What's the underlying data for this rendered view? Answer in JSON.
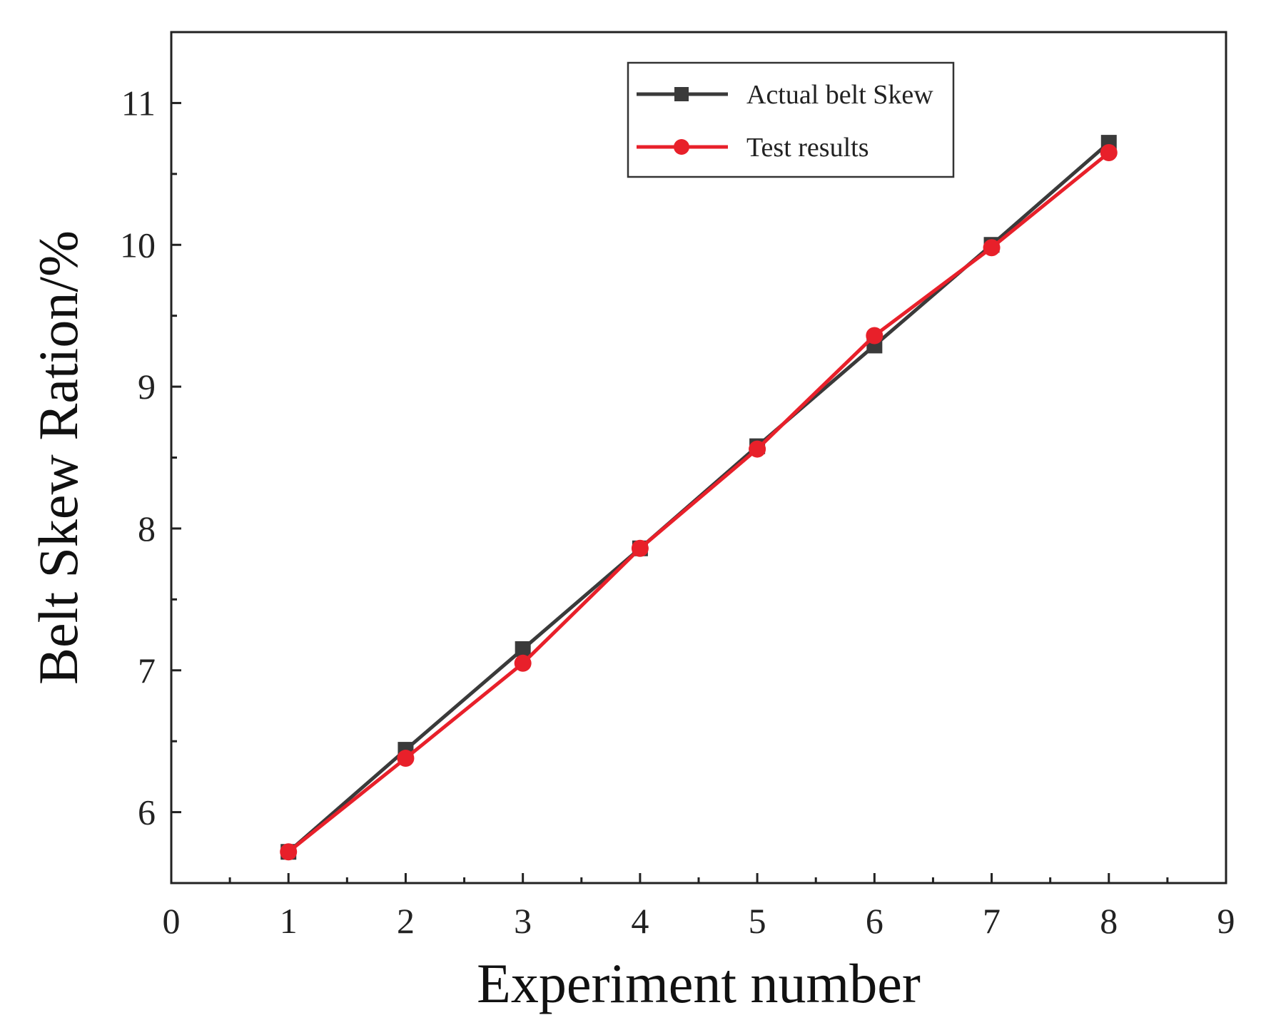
{
  "chart_data": {
    "type": "line",
    "title": "",
    "xlabel": "Experiment number",
    "ylabel": "Belt Skew Ration/%",
    "xlim": [
      0,
      9
    ],
    "ylim": [
      5.5,
      11.5
    ],
    "x_ticks": [
      0,
      1,
      2,
      3,
      4,
      5,
      6,
      7,
      8,
      9
    ],
    "y_ticks": [
      6,
      7,
      8,
      9,
      10,
      11
    ],
    "grid": false,
    "legend_position": "top-right",
    "x": [
      1,
      2,
      3,
      4,
      5,
      6,
      7,
      8
    ],
    "series": [
      {
        "name": "Actual belt Skew",
        "color": "#3a3a3a",
        "marker": "square",
        "values": [
          5.72,
          6.44,
          7.15,
          7.86,
          8.58,
          9.29,
          10.0,
          10.72
        ]
      },
      {
        "name": "Test results",
        "color": "#e8202a",
        "marker": "circle",
        "values": [
          5.72,
          6.38,
          7.05,
          7.86,
          8.56,
          9.36,
          9.98,
          10.65
        ]
      }
    ]
  }
}
